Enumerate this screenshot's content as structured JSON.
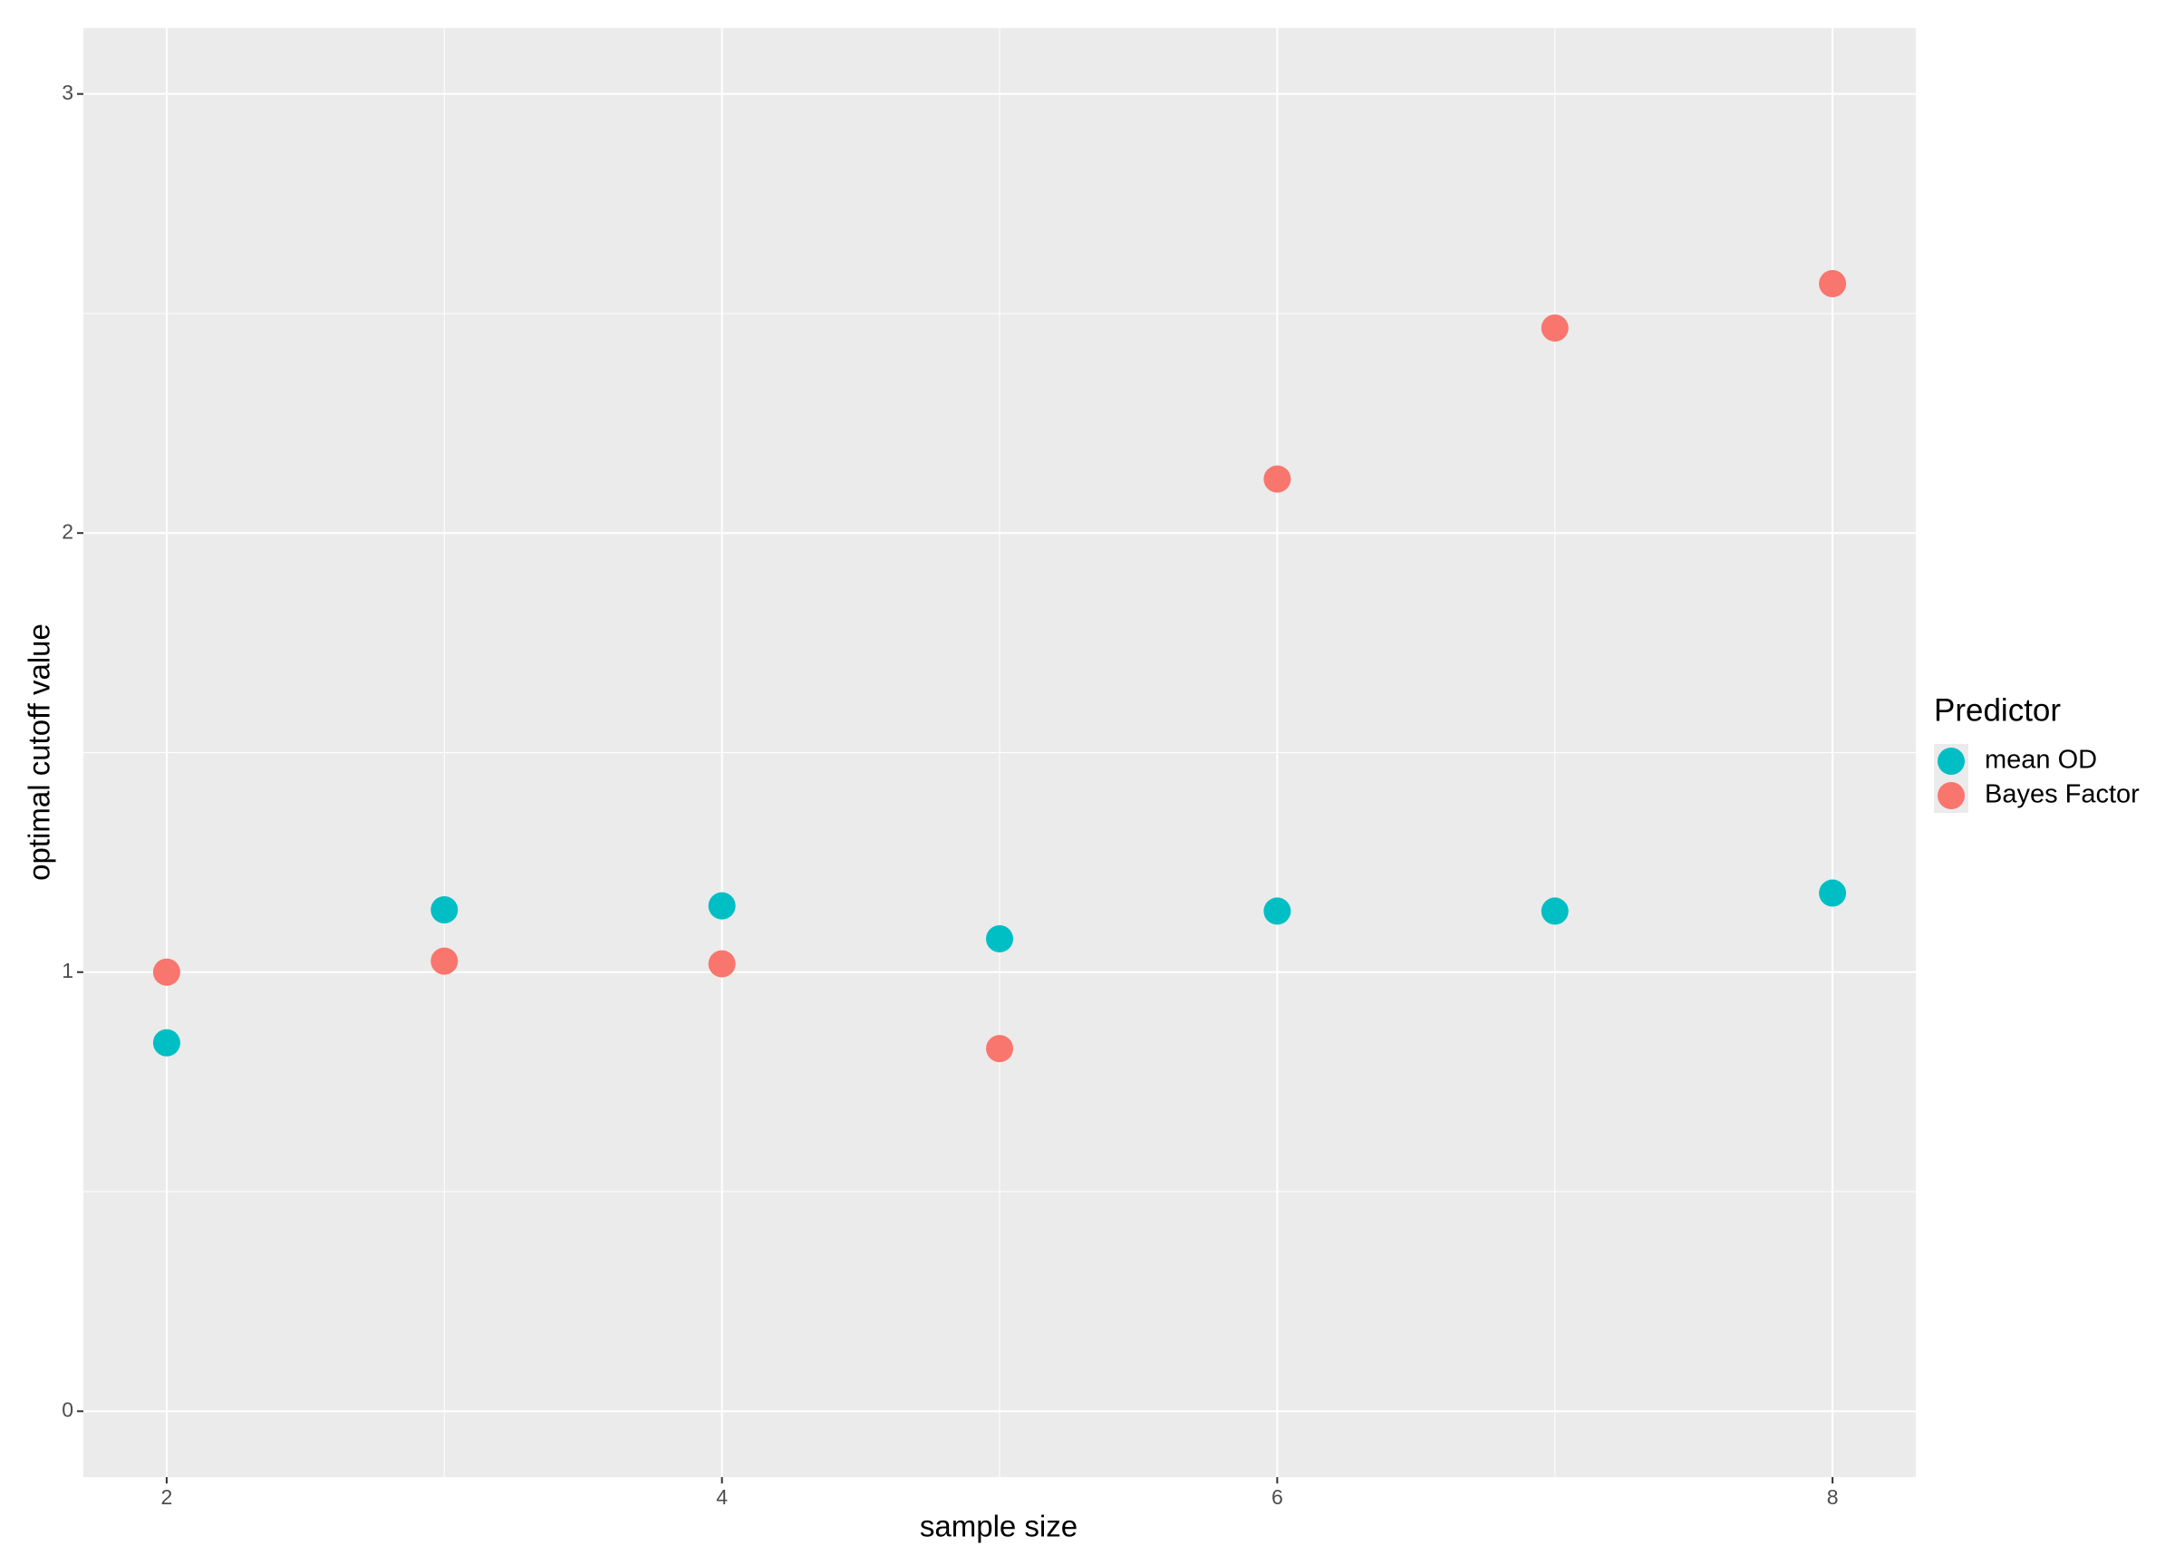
{
  "chart_data": {
    "type": "scatter",
    "x_label": "sample size",
    "y_label": "optimal cutoff value",
    "legend_title": "Predictor",
    "legend_position": "right",
    "grid": true,
    "xlim": [
      1.7,
      8.3
    ],
    "xticks": [
      2,
      4,
      6,
      8
    ],
    "x_minor": [
      3,
      5,
      7
    ],
    "ylim": [
      -0.15,
      3.15
    ],
    "yticks": [
      0,
      1,
      2,
      3
    ],
    "y_minor": [
      0.5,
      1.5,
      2.5
    ],
    "series": [
      {
        "name": "mean OD",
        "color": "#00bfc4",
        "x": [
          2,
          3,
          4,
          5,
          6,
          7,
          8
        ],
        "values": [
          0.839,
          1.142,
          1.151,
          1.076,
          1.139,
          1.139,
          1.18
        ]
      },
      {
        "name": "Bayes Factor",
        "color": "#f8766d",
        "x": [
          2,
          3,
          4,
          5,
          6,
          7,
          8
        ],
        "values": [
          1.0,
          1.025,
          1.019,
          0.826,
          2.123,
          2.467,
          2.568
        ]
      }
    ]
  }
}
